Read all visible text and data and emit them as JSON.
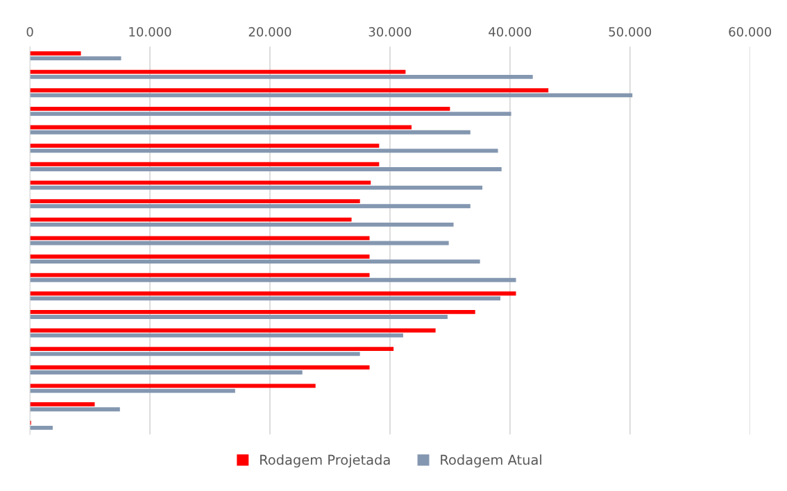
{
  "chart_data": {
    "type": "bar",
    "orientation": "horizontal",
    "categories": [
      null,
      null,
      null,
      null,
      null,
      null,
      null,
      null,
      null,
      null,
      null,
      null,
      null,
      null,
      null,
      null,
      null,
      null,
      null,
      null,
      null
    ],
    "series": [
      {
        "name": "Rodagem Projetada",
        "color": "#ff0000",
        "values": [
          4250,
          31300,
          43200,
          35000,
          31800,
          29100,
          29100,
          28400,
          27500,
          26800,
          28300,
          28300,
          28300,
          40500,
          37100,
          33800,
          30300,
          28300,
          23800,
          5400,
          100
        ]
      },
      {
        "name": "Rodagem Atual",
        "color": "#8497b0",
        "values": [
          7600,
          41900,
          50200,
          40100,
          36700,
          39000,
          39300,
          37700,
          36700,
          35300,
          34900,
          37500,
          40500,
          39200,
          34800,
          31100,
          27500,
          22700,
          17100,
          7500,
          1900
        ]
      }
    ],
    "xlim": [
      0,
      60000
    ],
    "xticks": [
      0,
      {
        "value": 10000,
        "label": "10.000"
      },
      {
        "value": 20000,
        "label": "20.000"
      },
      {
        "value": 30000,
        "label": "30.000"
      },
      {
        "value": 40000,
        "label": "40.000"
      },
      {
        "value": 50000,
        "label": "50.000"
      },
      {
        "value": 60000,
        "label": "60.000"
      }
    ],
    "grid": "x",
    "legend": "bottom"
  }
}
